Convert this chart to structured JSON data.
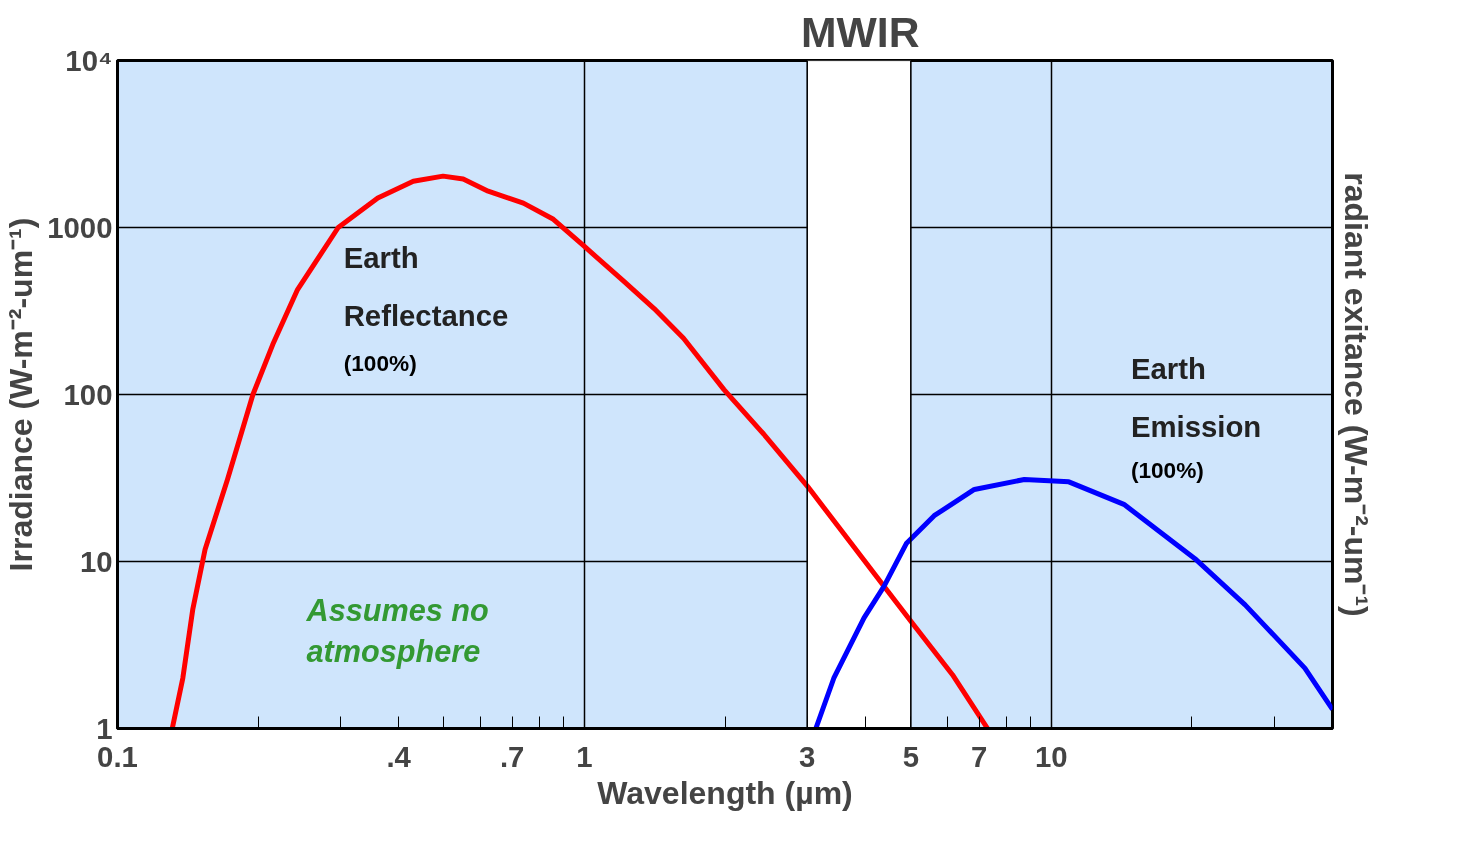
{
  "chart_data": {
    "type": "line",
    "xlabel": "Wavelength (µm)",
    "ylabel": "Irradiance (W-m⁻²-um⁻¹)",
    "y2label": "radiant exitance (W-m⁻²-um⁻¹)",
    "log": "xy",
    "grid": true,
    "legend": false,
    "marker": "none",
    "line_style": "solid",
    "xlim": [
      0.1,
      40
    ],
    "ylim": [
      1,
      10000
    ],
    "xticks": [
      {
        "value": 0.1,
        "label": "0.1"
      },
      {
        "value": 0.2,
        "label": null
      },
      {
        "value": 0.3,
        "label": null
      },
      {
        "value": 0.4,
        "label": ".4"
      },
      {
        "value": 0.5,
        "label": null
      },
      {
        "value": 0.6,
        "label": null
      },
      {
        "value": 0.7,
        "label": ".7"
      },
      {
        "value": 0.8,
        "label": null
      },
      {
        "value": 0.9,
        "label": null
      },
      1,
      {
        "value": 2,
        "label": null
      },
      3,
      {
        "value": 4,
        "label": null
      },
      5,
      {
        "value": 6,
        "label": null
      },
      7,
      {
        "value": 8,
        "label": null
      },
      {
        "value": 9,
        "label": null
      },
      10,
      {
        "value": 20,
        "label": null
      },
      {
        "value": 30,
        "label": null
      }
    ],
    "yticks": [
      1,
      10,
      100,
      1000,
      {
        "value": 10000,
        "label": "10⁴"
      }
    ],
    "bands": [
      {
        "axis": "x",
        "from": 3,
        "to": 5,
        "label": "MWIR",
        "color": "#ffffff"
      }
    ],
    "series": [
      {
        "name": "Earth Reflectance",
        "color": "#ff0000",
        "x": [
          0.131,
          0.138,
          0.145,
          0.154,
          0.172,
          0.195,
          0.215,
          0.243,
          0.297,
          0.361,
          0.43,
          0.498,
          0.55,
          0.622,
          0.74,
          0.858,
          1.0,
          1.21,
          1.41,
          1.63,
          1.99,
          2.42,
          3.01,
          3.59,
          4.38,
          5.03,
          6.14,
          7.3
        ],
        "values": [
          1,
          2.0,
          5.2,
          11.8,
          31,
          100,
          199,
          425,
          1000,
          1500,
          1890,
          2030,
          1950,
          1650,
          1400,
          1120,
          770,
          480,
          327,
          217,
          107,
          58,
          28,
          14.7,
          7.1,
          4.3,
          2.1,
          1.0
        ]
      },
      {
        "name": "Earth Emission",
        "color": "#0000ff",
        "x": [
          3.13,
          3.42,
          3.97,
          4.38,
          4.89,
          5.61,
          6.84,
          8.75,
          10.9,
          14.3,
          20.3,
          26,
          34.9,
          40
        ],
        "values": [
          1,
          2.0,
          4.6,
          7.1,
          12.8,
          18.8,
          27,
          31,
          30,
          22,
          10.4,
          5.5,
          2.3,
          1.3
        ]
      }
    ],
    "annotations": [
      "(100%)",
      "(100%)",
      "Assumes no atmosphere"
    ]
  }
}
